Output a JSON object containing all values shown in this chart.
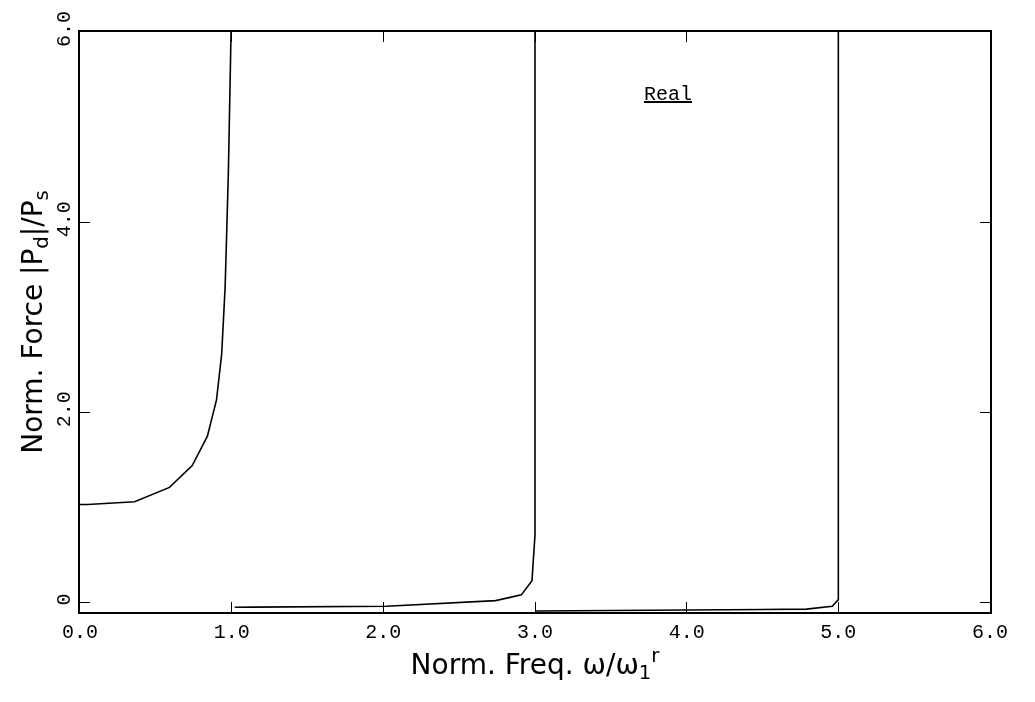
{
  "chart_data": {
    "type": "line",
    "xlabel": "Norm. Freq. ω/ω$_{1}$$^{r}$",
    "ylabel": "Norm. Force |P$_{d}$|/P$_{s}$",
    "annotations": [
      "Real"
    ],
    "series": [
      {
        "color": "#000000",
        "x": [
          0.0,
          0.05,
          0.36,
          0.59,
          0.74,
          0.84,
          0.9,
          0.934,
          0.957,
          0.978,
          0.996
        ],
        "values": [
          1.03,
          1.03,
          1.06,
          1.21,
          1.44,
          1.75,
          2.13,
          2.61,
          3.32,
          4.5,
          6.0
        ]
      },
      {
        "color": "#000000",
        "x": [
          1.02,
          2.02,
          2.74,
          2.91,
          2.98,
          3.0,
          3.0
        ],
        "values": [
          -0.05,
          -0.04,
          0.02,
          0.08,
          0.23,
          0.71,
          6.0
        ]
      },
      {
        "color": "#000000",
        "x": [
          3.0,
          4.79,
          4.96,
          5.0,
          5.0
        ],
        "values": [
          -0.09,
          -0.07,
          -0.04,
          0.03,
          6.0
        ]
      }
    ],
    "xlim": [
      0,
      6
    ],
    "ylim": [
      -0.1,
      6
    ],
    "xticks": [
      {
        "value": 0,
        "label": "0.0"
      },
      {
        "value": 1,
        "label": "1.0"
      },
      {
        "value": 2,
        "label": "2.0"
      },
      {
        "value": 3,
        "label": "3.0"
      },
      {
        "value": 4,
        "label": "4.0"
      },
      {
        "value": 5,
        "label": "5.0"
      },
      {
        "value": 6,
        "label": "6.0"
      }
    ],
    "yticks": [
      0,
      {
        "value": 2,
        "label": "2.0"
      },
      {
        "value": 4,
        "label": "4.0"
      },
      {
        "value": 6,
        "label": "6.0"
      }
    ],
    "marker": "none",
    "line_style": "solid"
  }
}
